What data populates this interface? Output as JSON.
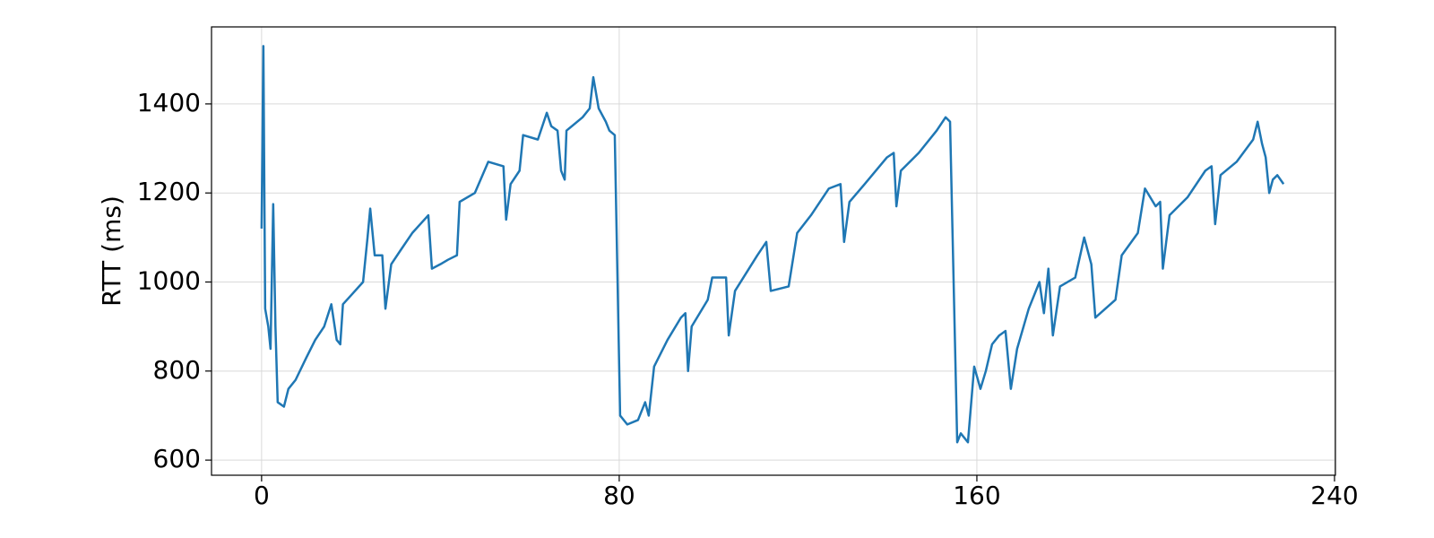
{
  "chart_data": {
    "type": "line",
    "y_label": "RTT (ms)",
    "x": [
      0,
      0.4,
      0.8,
      1.5,
      2,
      2.6,
      3.1,
      3.6,
      5,
      6,
      7.6,
      10,
      12,
      14,
      15.6,
      16.8,
      17.6,
      18.2,
      20,
      22.7,
      23.7,
      24.3,
      25.3,
      27,
      27.7,
      29,
      31,
      33.7,
      37.3,
      38.1,
      40,
      41.7,
      43.7,
      44.3,
      47.7,
      50.7,
      54.1,
      54.7,
      55.7,
      57.7,
      58.5,
      61.8,
      63.8,
      64.8,
      66.2,
      67,
      67.8,
      68.2,
      71.8,
      73.4,
      74.2,
      75.4,
      77,
      77.8,
      79,
      80.2,
      81.8,
      84.2,
      85.8,
      86.6,
      87.8,
      90.8,
      93.8,
      94.8,
      95.4,
      96.2,
      99.8,
      100.8,
      103.9,
      104.5,
      105.9,
      110.9,
      112.9,
      113.9,
      117.9,
      119.8,
      122.9,
      126.9,
      129.5,
      130.3,
      131.5,
      134.9,
      139.9,
      141.4,
      142,
      143,
      147,
      151,
      153,
      154,
      155.6,
      156.4,
      158,
      159.4,
      160.8,
      162,
      163.4,
      165,
      166.4,
      167.6,
      169,
      171.6,
      174,
      175,
      176,
      177,
      178.6,
      182,
      184,
      185.6,
      186.5,
      191,
      192.4,
      196,
      197.6,
      200,
      201,
      201.6,
      203.1,
      207.1,
      211.1,
      212.5,
      213.3,
      214.5,
      218.1,
      221.8,
      222.8,
      223.8,
      224.6,
      225.4,
      226.2,
      227.2,
      228.6
    ],
    "series": [
      {
        "color": "#1f77b4",
        "values": [
          1120,
          1530,
          940,
          900,
          850,
          1175,
          900,
          730,
          720,
          760,
          780,
          830,
          870,
          900,
          950,
          870,
          860,
          950,
          970,
          1000,
          1100,
          1165,
          1060,
          1060,
          940,
          1040,
          1070,
          1110,
          1150,
          1030,
          1040,
          1050,
          1060,
          1180,
          1200,
          1270,
          1260,
          1140,
          1220,
          1250,
          1330,
          1320,
          1380,
          1350,
          1340,
          1250,
          1230,
          1340,
          1370,
          1390,
          1460,
          1390,
          1360,
          1340,
          1330,
          700,
          680,
          690,
          730,
          700,
          810,
          870,
          920,
          930,
          800,
          900,
          960,
          1010,
          1010,
          880,
          980,
          1060,
          1090,
          980,
          990,
          1110,
          1150,
          1210,
          1220,
          1090,
          1180,
          1220,
          1280,
          1290,
          1170,
          1250,
          1290,
          1340,
          1370,
          1360,
          640,
          660,
          640,
          810,
          760,
          800,
          860,
          880,
          890,
          760,
          850,
          940,
          1000,
          930,
          1030,
          880,
          990,
          1010,
          1100,
          1040,
          920,
          960,
          1060,
          1110,
          1210,
          1170,
          1180,
          1030,
          1150,
          1190,
          1250,
          1260,
          1130,
          1240,
          1270,
          1320,
          1360,
          1310,
          1280,
          1200,
          1230,
          1240,
          1220
        ]
      }
    ],
    "xlim": [
      -11.2,
      240.2
    ],
    "ylim": [
      566,
      1573
    ],
    "xticks": [
      0,
      80,
      160,
      240
    ],
    "yticks": [
      600,
      800,
      1000,
      1200,
      1400
    ],
    "grid": true
  }
}
